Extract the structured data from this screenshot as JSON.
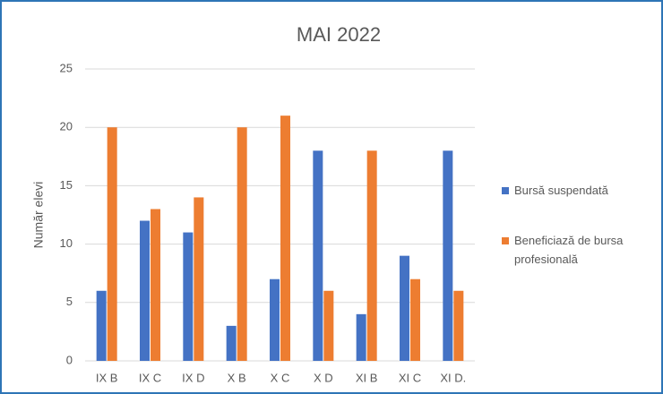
{
  "chart_data": {
    "type": "bar",
    "title": "MAI 2022",
    "y_label": "Număr elevi",
    "categories": [
      "IX B",
      "IX C",
      "IX D",
      "X B",
      "X C",
      "X D",
      "XI B",
      "XI C",
      "XI D."
    ],
    "series": [
      {
        "name": "Bursă suspendată",
        "color": "#4472c4",
        "values": [
          6,
          12,
          11,
          3,
          7,
          18,
          4,
          9,
          18
        ]
      },
      {
        "name": "Beneficiază de bursa profesională",
        "color": "#ed7d31",
        "values": [
          20,
          13,
          14,
          20,
          21,
          6,
          18,
          7,
          6
        ]
      }
    ],
    "ylim": [
      0,
      25
    ],
    "yticks": [
      0,
      5,
      10,
      15,
      20,
      25
    ],
    "grid": true,
    "legend": "right"
  }
}
